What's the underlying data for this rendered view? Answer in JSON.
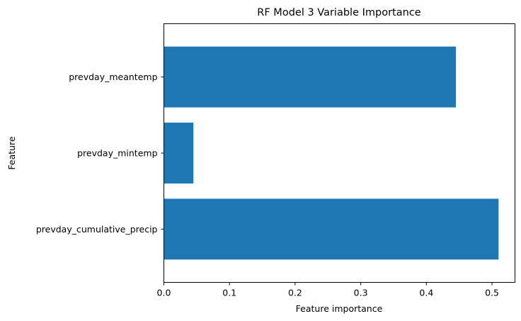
{
  "chart_data": {
    "type": "bar",
    "orientation": "horizontal",
    "title": "RF Model 3 Variable Importance",
    "xlabel": "Feature importance",
    "ylabel": "Feature",
    "categories": [
      "prevday_cumulative_precip",
      "prevday_mintemp",
      "prevday_meantemp"
    ],
    "values": [
      0.51,
      0.045,
      0.445
    ],
    "xlim": [
      0.0,
      0.535
    ],
    "xticks": [
      "0.0",
      "0.1",
      "0.2",
      "0.3",
      "0.4",
      "0.5"
    ],
    "bar_color": "#1f77b4",
    "grid": false
  }
}
